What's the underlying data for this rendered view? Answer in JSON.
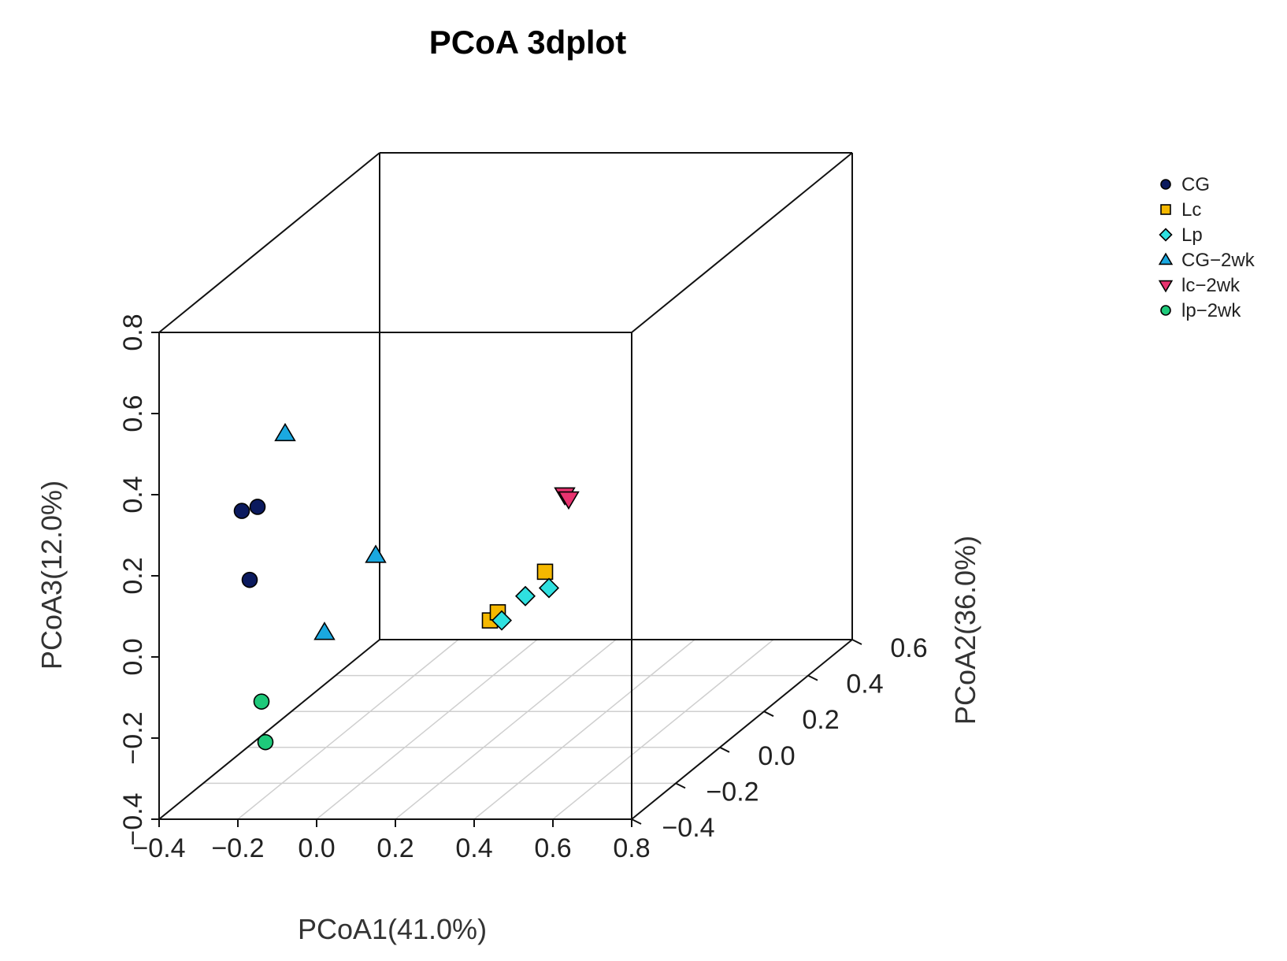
{
  "chart_data": {
    "type": "scatter",
    "subtype": "3d",
    "title": "PCoA 3dplot",
    "xlabel": "PCoA1(41.0%)",
    "ylabel": "PCoA2(36.0%)",
    "zlabel": "PCoA3(12.0%)",
    "xlim": [
      -0.4,
      0.8
    ],
    "ylim": [
      -0.4,
      0.6
    ],
    "zlim": [
      -0.4,
      0.8
    ],
    "x_ticks": [
      "-0.4",
      "-0.2",
      "0.0",
      "0.2",
      "0.4",
      "0.6",
      "0.8"
    ],
    "y_ticks": [
      "-0.4",
      "-0.2",
      "0.0",
      "0.2",
      "0.4",
      "0.6"
    ],
    "z_ticks": [
      "-0.4",
      "-0.2",
      "0.0",
      "0.2",
      "0.4",
      "0.6",
      "0.8"
    ],
    "grid": true,
    "legend_position": "top-right",
    "series": [
      {
        "name": "CG",
        "marker": "circle",
        "color": "#0b1a5e",
        "points": [
          [
            -0.19,
            -0.4,
            0.36
          ],
          [
            -0.15,
            -0.4,
            0.37
          ],
          [
            -0.17,
            -0.4,
            0.19
          ]
        ]
      },
      {
        "name": "Lc",
        "marker": "square",
        "color": "#f5b800",
        "points": [
          [
            0.44,
            -0.4,
            0.09
          ],
          [
            0.46,
            -0.4,
            0.11
          ],
          [
            0.58,
            -0.4,
            0.21
          ]
        ]
      },
      {
        "name": "Lp",
        "marker": "diamond",
        "color": "#2fe0e0",
        "points": [
          [
            0.47,
            -0.4,
            0.09
          ],
          [
            0.53,
            -0.4,
            0.15
          ],
          [
            0.59,
            -0.4,
            0.17
          ]
        ]
      },
      {
        "name": "CG-2wk",
        "marker": "triangle-up",
        "color": "#1aa8e0",
        "points": [
          [
            -0.08,
            -0.4,
            0.55
          ],
          [
            0.02,
            -0.4,
            0.06
          ],
          [
            0.15,
            -0.4,
            0.25
          ]
        ]
      },
      {
        "name": "lc-2wk",
        "marker": "triangle-down",
        "color": "#e8336f",
        "points": [
          [
            0.63,
            -0.4,
            0.4
          ],
          [
            0.64,
            -0.4,
            0.39
          ]
        ]
      },
      {
        "name": "lp-2wk",
        "marker": "circle",
        "color": "#1ec97a",
        "points": [
          [
            -0.14,
            -0.4,
            -0.11
          ],
          [
            -0.13,
            -0.4,
            -0.21
          ]
        ]
      }
    ]
  }
}
